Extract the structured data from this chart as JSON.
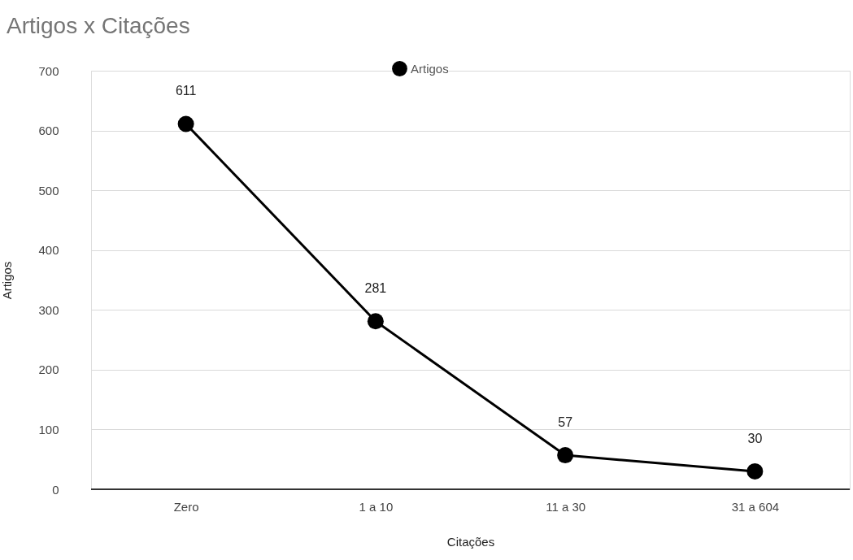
{
  "chart_data": {
    "type": "line",
    "title": "Artigos x Citações",
    "xlabel": "Citações",
    "ylabel": "Artigos",
    "categories": [
      "Zero",
      "1 a 10",
      "11 a 30",
      "31 a 604"
    ],
    "series": [
      {
        "name": "Artigos",
        "color": "#000000",
        "values": [
          611,
          281,
          57,
          30
        ]
      }
    ],
    "ylim": [
      0,
      700
    ],
    "yticks": [
      0,
      100,
      200,
      300,
      400,
      500,
      600,
      700
    ],
    "grid": "y",
    "legend": "top",
    "marker": "circle",
    "line_style": "solid",
    "data_labels": true
  }
}
